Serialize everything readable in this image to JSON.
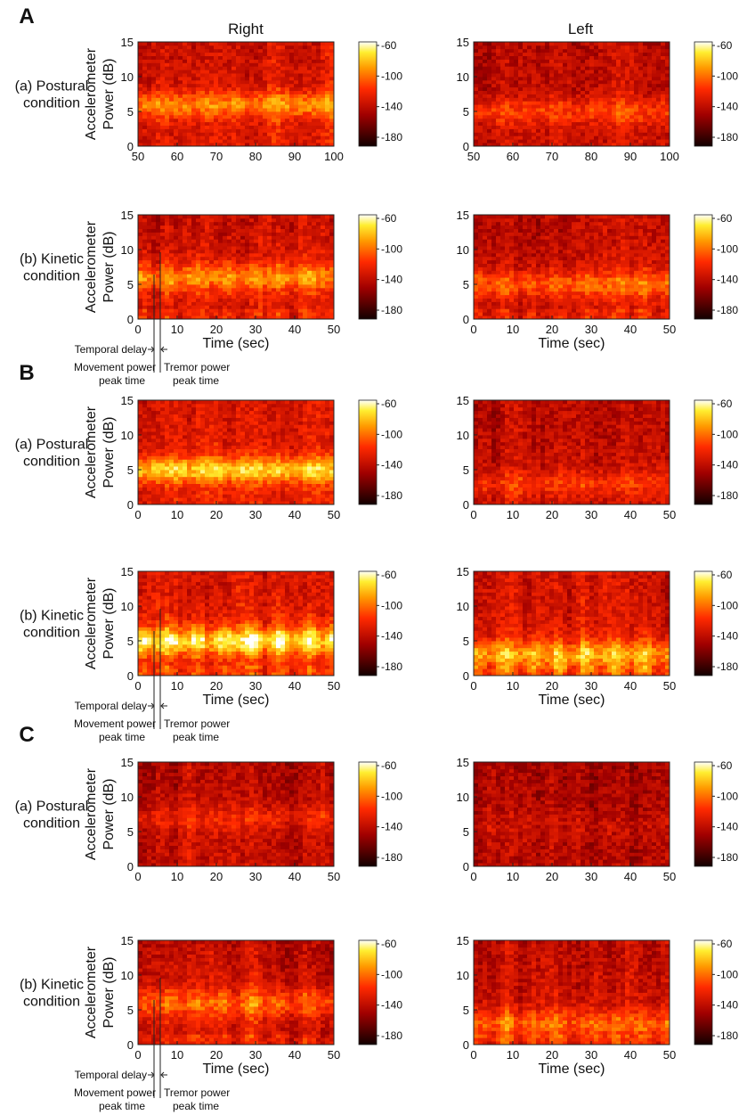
{
  "figure": {
    "column_headers": [
      "Right",
      "Left"
    ],
    "y_axis_label_line1": "Accelerometer",
    "y_axis_label_line2": "Power (dB)",
    "annotations": {
      "temporal_delay": "Temporal delay",
      "movement_peak_line1": "Movement power",
      "movement_peak_line2": "peak time",
      "tremor_peak_line1": "Tremor power",
      "tremor_peak_line2": "peak time"
    }
  },
  "colors": {
    "dark": "#1a0000",
    "red": "#e8200a",
    "orange": "#ff7a00",
    "yellow": "#ffee20",
    "white": "#ffffff"
  },
  "sections": [
    {
      "label": "A",
      "rows": [
        {
          "condition_line1": "(a) Postural",
          "condition_line2": "condition",
          "panels": [
            {
              "side": "Right",
              "x_ticks": [
                50,
                60,
                70,
                80,
                90,
                100
              ],
              "y_ticks": [
                0,
                5,
                10,
                15
              ],
              "xlabel": "",
              "colorbar_ticks": [
                -60,
                -100,
                -140,
                -180
              ],
              "pattern": "band",
              "band_center_hz": 6,
              "strength": 0.9,
              "seed": 11
            },
            {
              "side": "Left",
              "x_ticks": [
                50,
                60,
                70,
                80,
                90,
                100
              ],
              "y_ticks": [
                0,
                5,
                10,
                15
              ],
              "xlabel": "",
              "colorbar_ticks": [
                -60,
                -100,
                -140,
                -180
              ],
              "pattern": "band",
              "band_center_hz": 5,
              "strength": 0.55,
              "seed": 12
            }
          ]
        },
        {
          "condition_line1": "(b) Kinetic",
          "condition_line2": "condition",
          "annotate": true,
          "panels": [
            {
              "side": "Right",
              "x_ticks": [
                0,
                10,
                20,
                30,
                40,
                50
              ],
              "y_ticks": [
                0,
                5,
                10,
                15
              ],
              "xlabel": "Time (sec)",
              "colorbar_ticks": [
                -60,
                -100,
                -140,
                -180
              ],
              "pattern": "kinetic",
              "band_center_hz": 6,
              "strength": 0.75,
              "seed": 13
            },
            {
              "side": "Left",
              "x_ticks": [
                0,
                10,
                20,
                30,
                40,
                50
              ],
              "y_ticks": [
                0,
                5,
                10,
                15
              ],
              "xlabel": "Time (sec)",
              "colorbar_ticks": [
                -60,
                -100,
                -140,
                -180
              ],
              "pattern": "kinetic",
              "band_center_hz": 5,
              "strength": 0.6,
              "seed": 14
            }
          ]
        }
      ]
    },
    {
      "label": "B",
      "rows": [
        {
          "condition_line1": "(a) Postural",
          "condition_line2": "condition",
          "panels": [
            {
              "side": "Right",
              "x_ticks": [
                0,
                10,
                20,
                30,
                40,
                50
              ],
              "y_ticks": [
                0,
                5,
                10,
                15
              ],
              "xlabel": "",
              "colorbar_ticks": [
                -60,
                -100,
                -140,
                -180
              ],
              "pattern": "band",
              "band_center_hz": 5,
              "strength": 1.15,
              "seed": 21
            },
            {
              "side": "Left",
              "x_ticks": [
                0,
                10,
                20,
                30,
                40,
                50
              ],
              "y_ticks": [
                0,
                5,
                10,
                15
              ],
              "xlabel": "",
              "colorbar_ticks": [
                -60,
                -100,
                -140,
                -180
              ],
              "pattern": "band",
              "band_center_hz": 3,
              "strength": 0.45,
              "seed": 22
            }
          ]
        },
        {
          "condition_line1": "(b) Kinetic",
          "condition_line2": "condition",
          "annotate": true,
          "panels": [
            {
              "side": "Right",
              "x_ticks": [
                0,
                10,
                20,
                30,
                40,
                50
              ],
              "y_ticks": [
                0,
                5,
                10,
                15
              ],
              "xlabel": "Time (sec)",
              "colorbar_ticks": [
                -60,
                -100,
                -140,
                -180
              ],
              "pattern": "kinetic",
              "band_center_hz": 5,
              "strength": 1.1,
              "seed": 23
            },
            {
              "side": "Left",
              "x_ticks": [
                0,
                10,
                20,
                30,
                40,
                50
              ],
              "y_ticks": [
                0,
                5,
                10,
                15
              ],
              "xlabel": "Time (sec)",
              "colorbar_ticks": [
                -60,
                -100,
                -140,
                -180
              ],
              "pattern": "kinetic",
              "band_center_hz": 3,
              "strength": 0.85,
              "seed": 24
            }
          ]
        }
      ]
    },
    {
      "label": "C",
      "rows": [
        {
          "condition_line1": "(a) Postural",
          "condition_line2": "condition",
          "panels": [
            {
              "side": "Right",
              "x_ticks": [
                0,
                10,
                20,
                30,
                40,
                50
              ],
              "y_ticks": [
                0,
                5,
                10,
                15
              ],
              "xlabel": "",
              "colorbar_ticks": [
                -60,
                -100,
                -140,
                -180
              ],
              "pattern": "band",
              "band_center_hz": 7,
              "strength": 0.4,
              "seed": 31
            },
            {
              "side": "Left",
              "x_ticks": [
                0,
                10,
                20,
                30,
                40,
                50
              ],
              "y_ticks": [
                0,
                5,
                10,
                15
              ],
              "xlabel": "",
              "colorbar_ticks": [
                -60,
                -100,
                -140,
                -180
              ],
              "pattern": "band",
              "band_center_hz": 6,
              "strength": 0.15,
              "seed": 32
            }
          ]
        },
        {
          "condition_line1": "(b) Kinetic",
          "condition_line2": "condition",
          "annotate": true,
          "panels": [
            {
              "side": "Right",
              "x_ticks": [
                0,
                10,
                20,
                30,
                40,
                50
              ],
              "y_ticks": [
                0,
                5,
                10,
                15
              ],
              "xlabel": "Time (sec)",
              "colorbar_ticks": [
                -60,
                -100,
                -140,
                -180
              ],
              "pattern": "kinetic",
              "band_center_hz": 6,
              "strength": 0.6,
              "seed": 33
            },
            {
              "side": "Left",
              "x_ticks": [
                0,
                10,
                20,
                30,
                40,
                50
              ],
              "y_ticks": [
                0,
                5,
                10,
                15
              ],
              "xlabel": "Time (sec)",
              "colorbar_ticks": [
                -60,
                -100,
                -140,
                -180
              ],
              "pattern": "kinetic",
              "band_center_hz": 3,
              "strength": 0.6,
              "seed": 34
            }
          ]
        }
      ]
    }
  ],
  "chart_data": {
    "type": "heatmap",
    "title": "",
    "xlabel": "Time (sec)",
    "ylabel": "Accelerometer Power (dB)",
    "ylim": [
      0,
      15
    ],
    "colorbar_range": [
      -180,
      -60
    ],
    "colorbar_ticks": [
      -60,
      -100,
      -140,
      -180
    ],
    "panels": [
      {
        "section": "A",
        "condition": "(a) Postural condition",
        "side": "Right",
        "xlim": [
          50,
          100
        ]
      },
      {
        "section": "A",
        "condition": "(a) Postural condition",
        "side": "Left",
        "xlim": [
          50,
          100
        ]
      },
      {
        "section": "A",
        "condition": "(b) Kinetic condition",
        "side": "Right",
        "xlim": [
          0,
          50
        ]
      },
      {
        "section": "A",
        "condition": "(b) Kinetic condition",
        "side": "Left",
        "xlim": [
          0,
          50
        ]
      },
      {
        "section": "B",
        "condition": "(a) Postural condition",
        "side": "Right",
        "xlim": [
          0,
          50
        ]
      },
      {
        "section": "B",
        "condition": "(a) Postural condition",
        "side": "Left",
        "xlim": [
          0,
          50
        ]
      },
      {
        "section": "B",
        "condition": "(b) Kinetic condition",
        "side": "Right",
        "xlim": [
          0,
          50
        ]
      },
      {
        "section": "B",
        "condition": "(b) Kinetic condition",
        "side": "Left",
        "xlim": [
          0,
          50
        ]
      },
      {
        "section": "C",
        "condition": "(a) Postural condition",
        "side": "Right",
        "xlim": [
          0,
          50
        ]
      },
      {
        "section": "C",
        "condition": "(a) Postural condition",
        "side": "Left",
        "xlim": [
          0,
          50
        ]
      },
      {
        "section": "C",
        "condition": "(b) Kinetic condition",
        "side": "Right",
        "xlim": [
          0,
          50
        ]
      },
      {
        "section": "C",
        "condition": "(b) Kinetic condition",
        "side": "Left",
        "xlim": [
          0,
          50
        ]
      }
    ]
  }
}
